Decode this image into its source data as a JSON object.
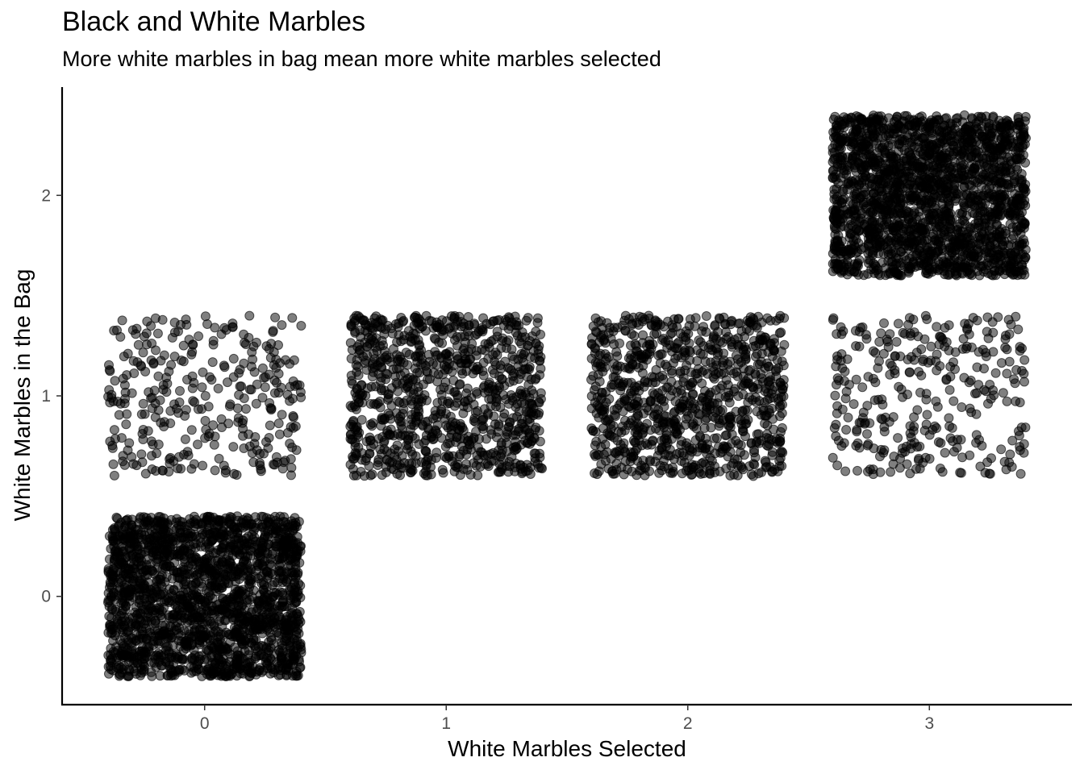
{
  "chart_data": {
    "type": "scatter",
    "title": "Black and White Marbles",
    "subtitle": "More white marbles in bag mean more white marbles selected",
    "xlabel": "White Marbles Selected",
    "ylabel": "White Marbles in the Bag",
    "x_ticks": [
      0,
      1,
      2,
      3
    ],
    "y_ticks": [
      0,
      1,
      2
    ],
    "xlim": [
      -0.59,
      3.59
    ],
    "ylim": [
      -0.54,
      2.54
    ],
    "grid": false,
    "jitter": 0.4,
    "point_color": "#000000",
    "point_opacity": 0.5,
    "groups": [
      {
        "x": 0,
        "y": 0,
        "count": 2000
      },
      {
        "x": 0,
        "y": 1,
        "count": 320
      },
      {
        "x": 1,
        "y": 1,
        "count": 950
      },
      {
        "x": 2,
        "y": 1,
        "count": 950
      },
      {
        "x": 3,
        "y": 1,
        "count": 320
      },
      {
        "x": 3,
        "y": 2,
        "count": 2000
      }
    ]
  }
}
